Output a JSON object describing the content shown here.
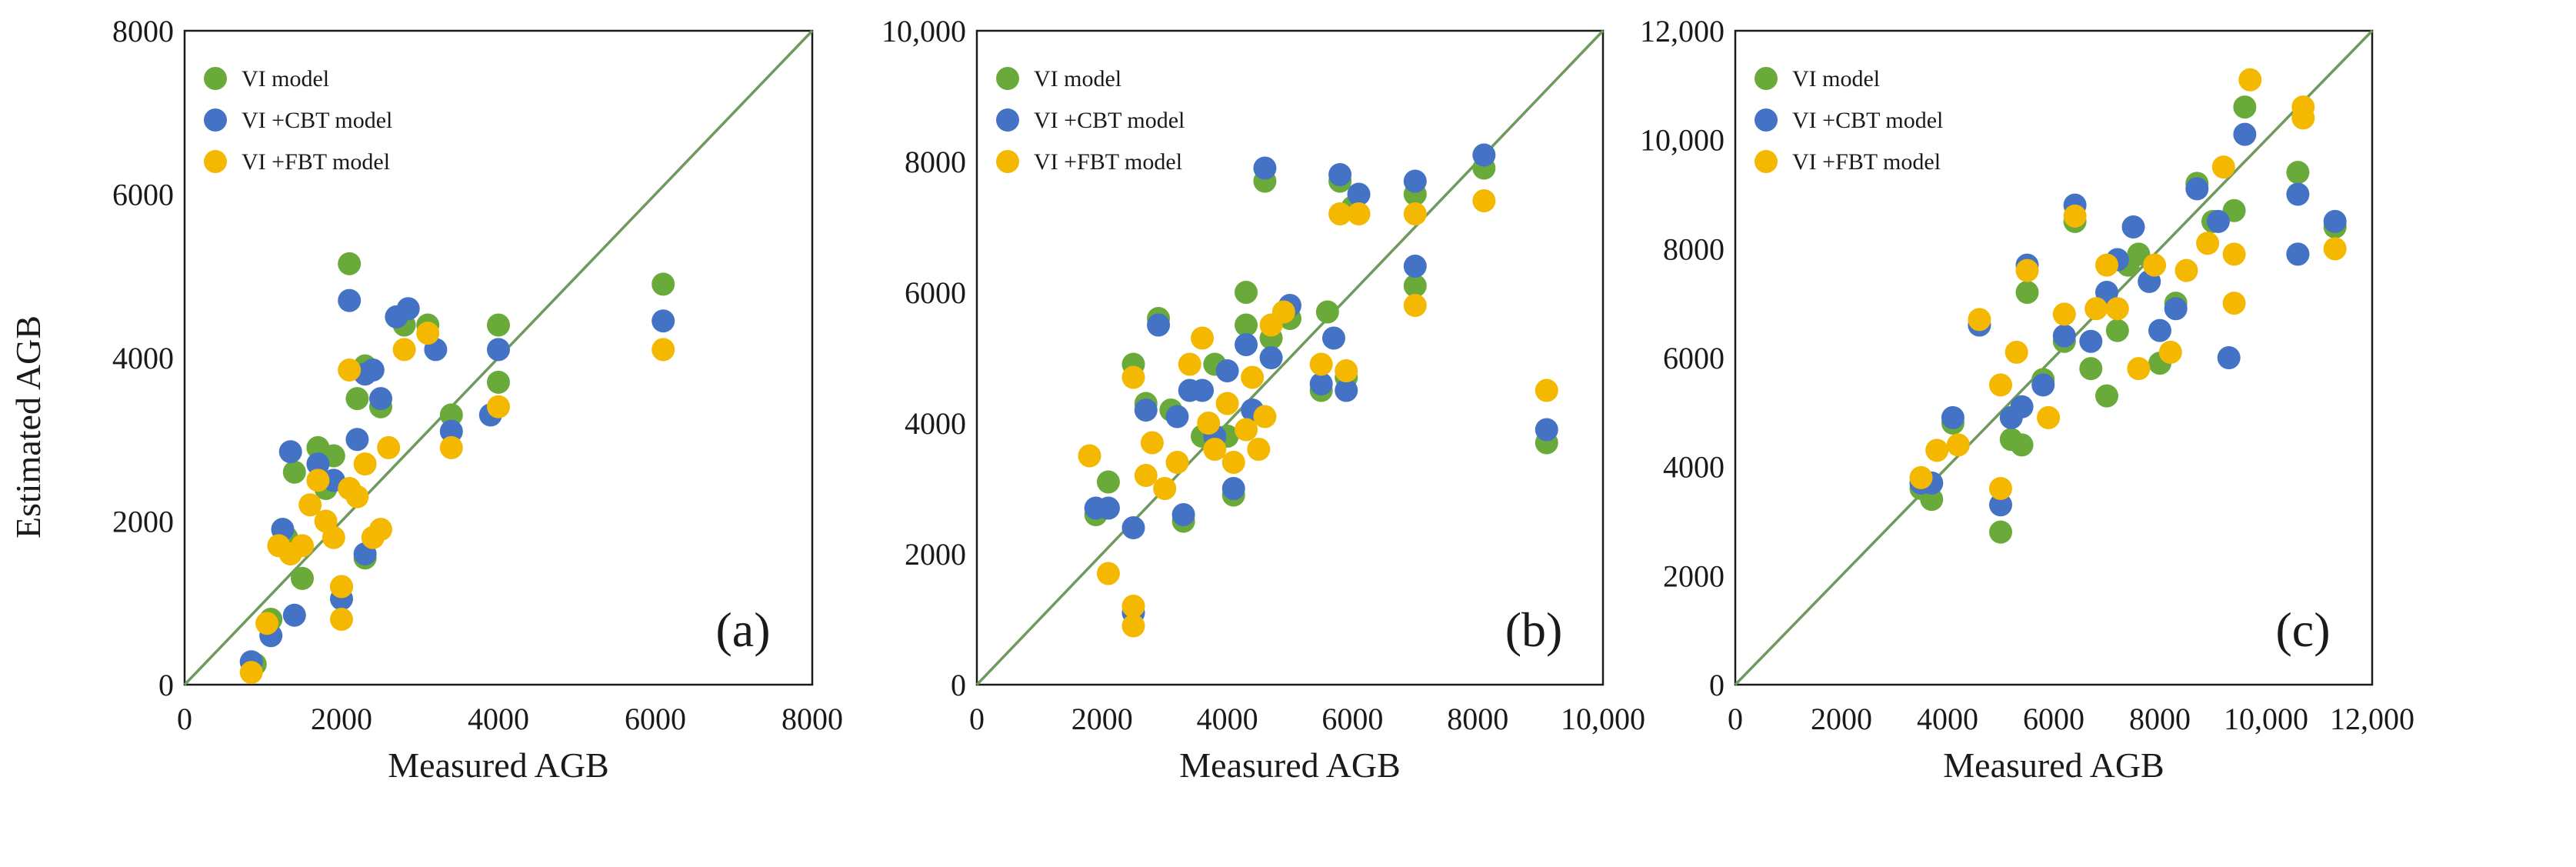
{
  "colors": {
    "vi": "#6aaa3a",
    "cbt": "#4472c4",
    "fbt": "#f5b800",
    "line": "#6e9a5c",
    "frame": "#1a1a1a"
  },
  "chart_data": [
    {
      "type": "scatter",
      "panel": "(a)",
      "xlabel": "Measured AGB",
      "ylabel": "Estimated AGB",
      "xlim": [
        0,
        8000
      ],
      "ylim": [
        0,
        8000
      ],
      "xticks": [
        0,
        2000,
        4000,
        6000,
        8000
      ],
      "yticks": [
        0,
        2000,
        4000,
        6000,
        8000
      ],
      "xtick_labels": [
        "0",
        "2000",
        "4000",
        "6000",
        "8000"
      ],
      "ytick_labels": [
        "0",
        "2000",
        "4000",
        "6000",
        "8000"
      ],
      "reference_line": "1:1",
      "legend": [
        "VI model",
        "VI +CBT model",
        "VI +FBT model"
      ],
      "series": [
        {
          "name": "VI model",
          "points": [
            [
              900,
              250
            ],
            [
              1100,
              800
            ],
            [
              1300,
              1800
            ],
            [
              1400,
              2600
            ],
            [
              1500,
              1300
            ],
            [
              1700,
              2900
            ],
            [
              1800,
              2400
            ],
            [
              1900,
              2800
            ],
            [
              2000,
              1200
            ],
            [
              2100,
              5150
            ],
            [
              2200,
              3500
            ],
            [
              2300,
              3900
            ],
            [
              2300,
              1550
            ],
            [
              2500,
              3400
            ],
            [
              2800,
              4400
            ],
            [
              3100,
              4400
            ],
            [
              3400,
              3300
            ],
            [
              4000,
              4400
            ],
            [
              4000,
              3700
            ],
            [
              6100,
              4900
            ]
          ]
        },
        {
          "name": "VI +CBT model",
          "points": [
            [
              850,
              280
            ],
            [
              1100,
              600
            ],
            [
              1250,
              1900
            ],
            [
              1350,
              2850
            ],
            [
              1400,
              850
            ],
            [
              1700,
              2700
            ],
            [
              1900,
              2500
            ],
            [
              2000,
              1050
            ],
            [
              2100,
              4700
            ],
            [
              2200,
              3000
            ],
            [
              2300,
              3800
            ],
            [
              2400,
              3850
            ],
            [
              2300,
              1600
            ],
            [
              2500,
              3500
            ],
            [
              2700,
              4500
            ],
            [
              2850,
              4600
            ],
            [
              3200,
              4100
            ],
            [
              3400,
              3100
            ],
            [
              3900,
              3300
            ],
            [
              4000,
              4100
            ],
            [
              6100,
              4450
            ]
          ]
        },
        {
          "name": "VI +FBT model",
          "points": [
            [
              850,
              150
            ],
            [
              1050,
              750
            ],
            [
              1200,
              1700
            ],
            [
              1350,
              1600
            ],
            [
              1500,
              1700
            ],
            [
              1600,
              2200
            ],
            [
              1700,
              2500
            ],
            [
              1800,
              2000
            ],
            [
              1900,
              1800
            ],
            [
              2000,
              800
            ],
            [
              2000,
              1200
            ],
            [
              2100,
              2400
            ],
            [
              2100,
              3850
            ],
            [
              2200,
              2300
            ],
            [
              2300,
              2700
            ],
            [
              2400,
              1800
            ],
            [
              2500,
              1900
            ],
            [
              2600,
              2900
            ],
            [
              2800,
              4100
            ],
            [
              3100,
              4300
            ],
            [
              3400,
              2900
            ],
            [
              4000,
              3400
            ],
            [
              6100,
              4100
            ]
          ]
        }
      ]
    },
    {
      "type": "scatter",
      "panel": "(b)",
      "xlabel": "Measured AGB",
      "ylabel": "",
      "xlim": [
        0,
        10000
      ],
      "ylim": [
        0,
        10000
      ],
      "xticks": [
        0,
        2000,
        4000,
        6000,
        8000,
        10000
      ],
      "yticks": [
        0,
        2000,
        4000,
        6000,
        8000,
        10000
      ],
      "xtick_labels": [
        "0",
        "2000",
        "4000",
        "6000",
        "8000",
        "10,000"
      ],
      "ytick_labels": [
        "0",
        "2000",
        "4000",
        "6000",
        "8000",
        "10,000"
      ],
      "reference_line": "1:1",
      "legend": [
        "VI model",
        "VI +CBT model",
        "VI +FBT model"
      ],
      "series": [
        {
          "name": "VI model",
          "points": [
            [
              1900,
              2600
            ],
            [
              2100,
              3100
            ],
            [
              2500,
              4900
            ],
            [
              2700,
              4300
            ],
            [
              2900,
              5600
            ],
            [
              3100,
              4200
            ],
            [
              3300,
              2500
            ],
            [
              3600,
              3800
            ],
            [
              3800,
              4900
            ],
            [
              4000,
              3800
            ],
            [
              4100,
              2900
            ],
            [
              4300,
              6000
            ],
            [
              4300,
              5500
            ],
            [
              4600,
              7700
            ],
            [
              4700,
              5300
            ],
            [
              5000,
              5600
            ],
            [
              5500,
              4500
            ],
            [
              5600,
              5700
            ],
            [
              5800,
              7700
            ],
            [
              5900,
              4700
            ],
            [
              6000,
              7300
            ],
            [
              7000,
              6100
            ],
            [
              7000,
              7500
            ],
            [
              8100,
              7900
            ],
            [
              9100,
              3700
            ]
          ]
        },
        {
          "name": "VI +CBT model",
          "points": [
            [
              1900,
              2700
            ],
            [
              2100,
              2700
            ],
            [
              2500,
              2400
            ],
            [
              2500,
              1100
            ],
            [
              2700,
              4200
            ],
            [
              2900,
              5500
            ],
            [
              3200,
              4100
            ],
            [
              3300,
              2600
            ],
            [
              3400,
              4500
            ],
            [
              3600,
              4500
            ],
            [
              3800,
              3800
            ],
            [
              4000,
              4800
            ],
            [
              4100,
              3000
            ],
            [
              4300,
              5200
            ],
            [
              4400,
              4200
            ],
            [
              4600,
              7900
            ],
            [
              4700,
              5000
            ],
            [
              5000,
              5800
            ],
            [
              5500,
              4600
            ],
            [
              5700,
              5300
            ],
            [
              5800,
              7800
            ],
            [
              5900,
              4500
            ],
            [
              6100,
              7500
            ],
            [
              7000,
              6400
            ],
            [
              7000,
              7700
            ],
            [
              8100,
              8100
            ],
            [
              9100,
              3900
            ]
          ]
        },
        {
          "name": "VI +FBT model",
          "points": [
            [
              1800,
              3500
            ],
            [
              2100,
              1700
            ],
            [
              2500,
              1200
            ],
            [
              2500,
              900
            ],
            [
              2500,
              4700
            ],
            [
              2700,
              3200
            ],
            [
              2800,
              3700
            ],
            [
              3000,
              3000
            ],
            [
              3200,
              3400
            ],
            [
              3400,
              4900
            ],
            [
              3600,
              5300
            ],
            [
              3700,
              4000
            ],
            [
              3800,
              3600
            ],
            [
              4000,
              4300
            ],
            [
              4100,
              3400
            ],
            [
              4300,
              3900
            ],
            [
              4400,
              4700
            ],
            [
              4500,
              3600
            ],
            [
              4600,
              4100
            ],
            [
              4700,
              5500
            ],
            [
              4900,
              5700
            ],
            [
              5500,
              4900
            ],
            [
              5800,
              7200
            ],
            [
              5900,
              4800
            ],
            [
              6100,
              7200
            ],
            [
              7000,
              5800
            ],
            [
              7000,
              7200
            ],
            [
              8100,
              7400
            ],
            [
              9100,
              4500
            ]
          ]
        }
      ]
    },
    {
      "type": "scatter",
      "panel": "(c)",
      "xlabel": "Measured AGB",
      "ylabel": "",
      "xlim": [
        0,
        12000
      ],
      "ylim": [
        0,
        12000
      ],
      "xticks": [
        0,
        2000,
        4000,
        6000,
        8000,
        10000,
        12000
      ],
      "yticks": [
        0,
        2000,
        4000,
        6000,
        8000,
        10000,
        12000
      ],
      "xtick_labels": [
        "0",
        "2000",
        "4000",
        "6000",
        "8000",
        "10,000",
        "12,000"
      ],
      "ytick_labels": [
        "0",
        "2000",
        "4000",
        "6000",
        "8000",
        "10,000",
        "12,000"
      ],
      "reference_line": "1:1",
      "legend": [
        "VI model",
        "VI +CBT model",
        "VI +FBT model"
      ],
      "series": [
        {
          "name": "VI model",
          "points": [
            [
              3500,
              3600
            ],
            [
              3700,
              3400
            ],
            [
              4100,
              4800
            ],
            [
              4600,
              6600
            ],
            [
              5000,
              2800
            ],
            [
              5200,
              4500
            ],
            [
              5400,
              4400
            ],
            [
              5500,
              7200
            ],
            [
              5800,
              5600
            ],
            [
              6200,
              6300
            ],
            [
              6400,
              8500
            ],
            [
              6700,
              5800
            ],
            [
              7000,
              5300
            ],
            [
              7200,
              6500
            ],
            [
              7400,
              7700
            ],
            [
              7600,
              7900
            ],
            [
              8000,
              5900
            ],
            [
              8300,
              7000
            ],
            [
              8700,
              9200
            ],
            [
              9000,
              8500
            ],
            [
              9400,
              8700
            ],
            [
              9600,
              10600
            ],
            [
              10600,
              9400
            ],
            [
              10600,
              7900
            ],
            [
              11300,
              8400
            ]
          ]
        },
        {
          "name": "VI +CBT model",
          "points": [
            [
              3500,
              3700
            ],
            [
              3700,
              3700
            ],
            [
              4100,
              4900
            ],
            [
              4600,
              6600
            ],
            [
              5000,
              3300
            ],
            [
              5200,
              4900
            ],
            [
              5400,
              5100
            ],
            [
              5500,
              7700
            ],
            [
              5800,
              5500
            ],
            [
              6200,
              6400
            ],
            [
              6400,
              8800
            ],
            [
              6700,
              6300
            ],
            [
              7000,
              7200
            ],
            [
              7200,
              7800
            ],
            [
              7500,
              8400
            ],
            [
              7800,
              7400
            ],
            [
              8000,
              6500
            ],
            [
              8300,
              6900
            ],
            [
              8700,
              9100
            ],
            [
              9100,
              8500
            ],
            [
              9300,
              6000
            ],
            [
              9600,
              10100
            ],
            [
              10600,
              9000
            ],
            [
              10600,
              7900
            ],
            [
              11300,
              8500
            ]
          ]
        },
        {
          "name": "VI +FBT model",
          "points": [
            [
              3500,
              3800
            ],
            [
              3800,
              4300
            ],
            [
              4200,
              4400
            ],
            [
              4600,
              6700
            ],
            [
              5000,
              3600
            ],
            [
              5000,
              5500
            ],
            [
              5300,
              6100
            ],
            [
              5500,
              7600
            ],
            [
              5900,
              4900
            ],
            [
              6200,
              6800
            ],
            [
              6400,
              8600
            ],
            [
              6800,
              6900
            ],
            [
              7000,
              7700
            ],
            [
              7200,
              6900
            ],
            [
              7600,
              5800
            ],
            [
              7900,
              7700
            ],
            [
              8200,
              6100
            ],
            [
              8500,
              7600
            ],
            [
              8900,
              8100
            ],
            [
              9200,
              9500
            ],
            [
              9400,
              7900
            ],
            [
              9400,
              7000
            ],
            [
              9700,
              11100
            ],
            [
              10700,
              10400
            ],
            [
              10700,
              10600
            ],
            [
              11300,
              8000
            ]
          ]
        }
      ]
    }
  ]
}
